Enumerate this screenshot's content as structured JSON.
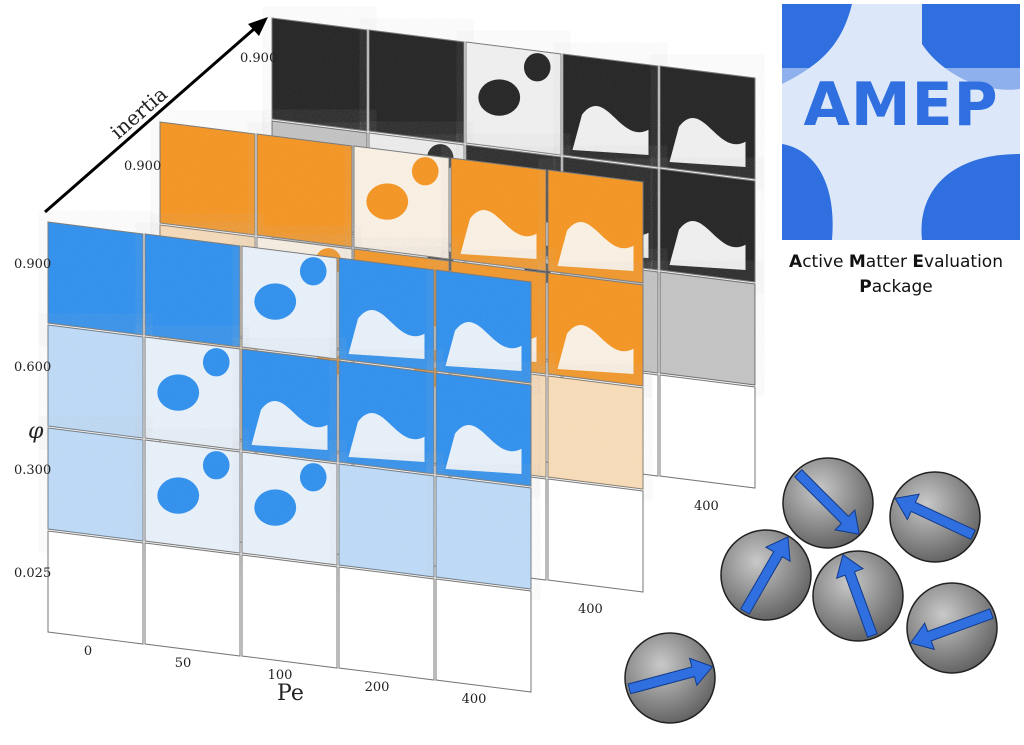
{
  "axes": {
    "inertia_label": "inertia",
    "phi_label": "φ",
    "pe_label": "Pe",
    "phi_ticks": [
      "0.900",
      "0.600",
      "0.300",
      "0.025"
    ],
    "pe_ticks": [
      "0",
      "50",
      "100",
      "200",
      "400"
    ],
    "back_layer_ticks": {
      "orange_phi": "0.900",
      "gray_phi": "0.900",
      "orange_pe": "400",
      "gray_pe": "400"
    }
  },
  "layers": [
    {
      "name": "gray",
      "color": "#1f1f1f",
      "light": "#f2f2f2"
    },
    {
      "name": "orange",
      "color": "#f7941d",
      "light": "#fdf3e6"
    },
    {
      "name": "blue",
      "color": "#2b8ff0",
      "light": "#eaf3fd"
    }
  ],
  "logo": {
    "title": "AMEP",
    "tagline_parts": [
      {
        "initial": "A",
        "rest": "ctive "
      },
      {
        "initial": "M",
        "rest": "atter "
      },
      {
        "initial": "E",
        "rest": "valuation"
      },
      {
        "initial": "P",
        "rest": "ackage"
      }
    ],
    "colors": {
      "dark": "#2f6fe0",
      "light": "#dce8fa"
    }
  },
  "particles": {
    "fill": "#7d7d7d",
    "arrow": "#2f6fe0",
    "count": 6
  }
}
